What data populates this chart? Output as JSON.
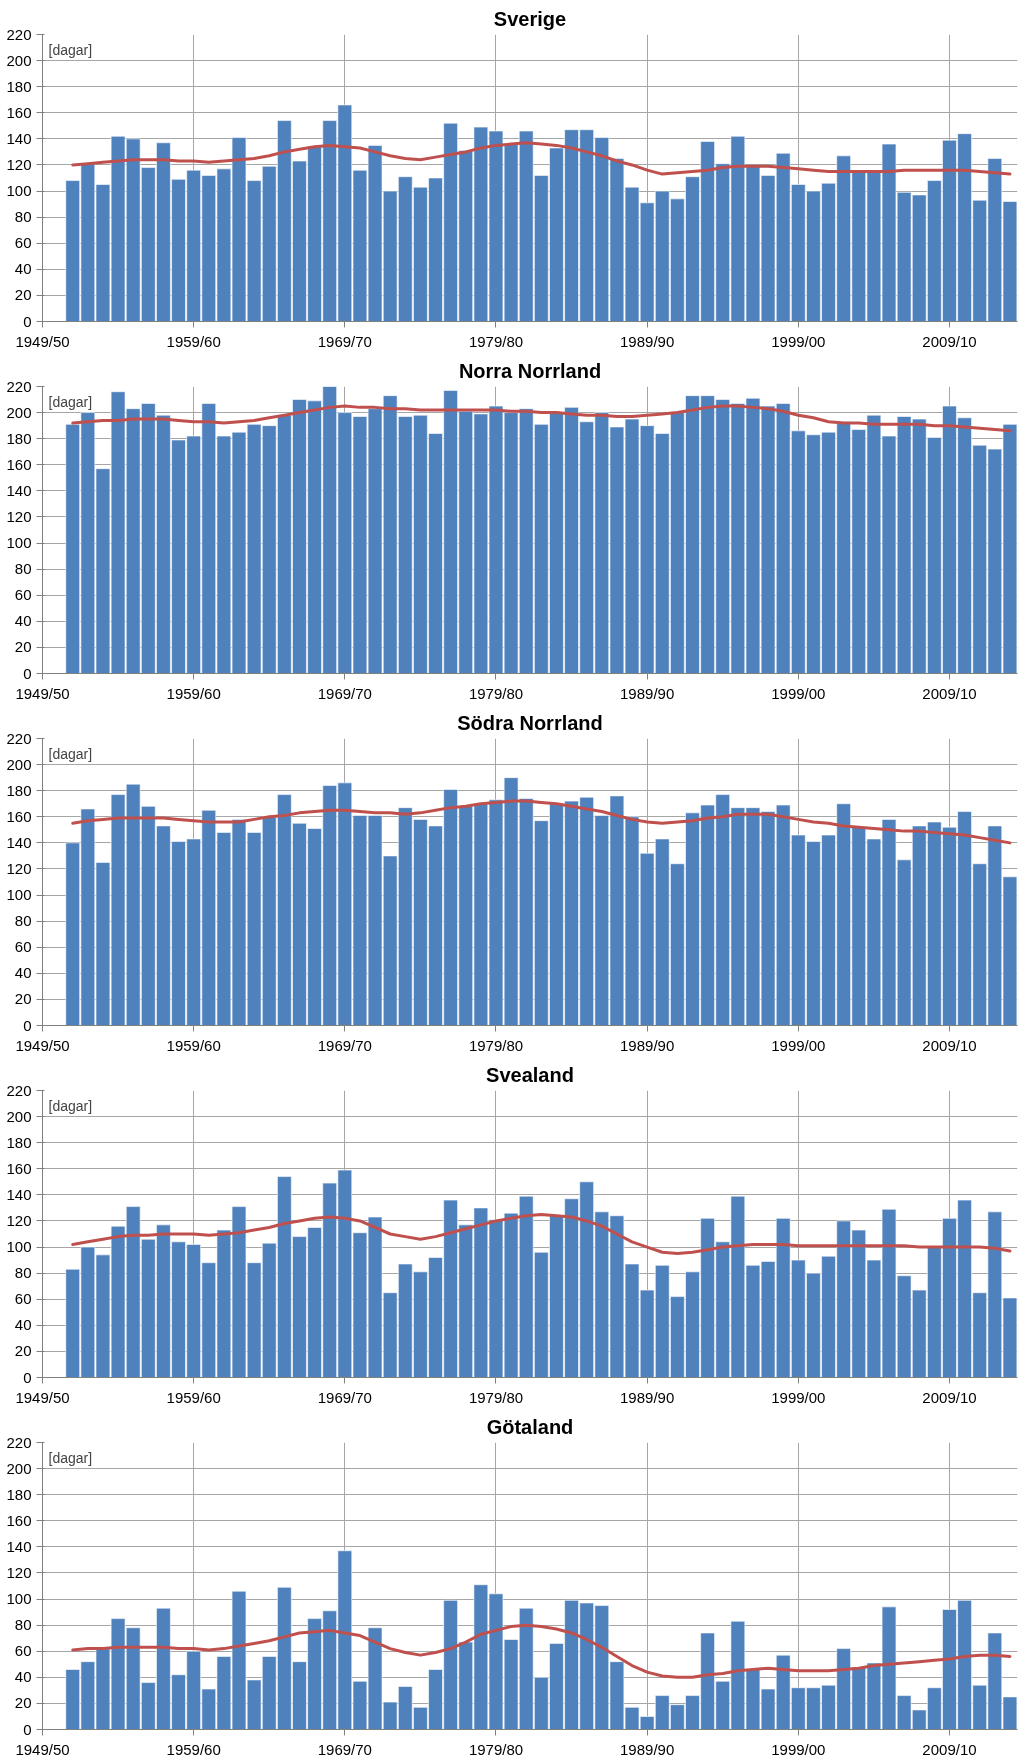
{
  "chart_data": [
    {
      "type": "bar",
      "title": "Sverige",
      "annotations": [
        "[dagar]"
      ],
      "ylim": [
        0,
        220
      ],
      "categories": [
        "1949/50",
        null,
        null,
        null,
        null,
        null,
        null,
        null,
        null,
        null,
        "1959/60",
        null,
        null,
        null,
        null,
        null,
        null,
        null,
        null,
        null,
        "1969/70",
        null,
        null,
        null,
        null,
        null,
        null,
        null,
        null,
        null,
        "1979/80",
        null,
        null,
        null,
        null,
        null,
        null,
        null,
        null,
        null,
        "1989/90",
        null,
        null,
        null,
        null,
        null,
        null,
        null,
        null,
        null,
        "1999/00",
        null,
        null,
        null,
        null,
        null,
        null,
        null,
        null,
        null,
        "2009/10",
        null,
        null,
        null,
        null
      ],
      "yticks": [
        0,
        20,
        40,
        60,
        80,
        100,
        120,
        140,
        160,
        180,
        200,
        220
      ],
      "grid": true,
      "series": [
        {
          "color": "#4f81bd",
          "values": [
            null,
            null,
            108,
            121,
            105,
            142,
            140,
            118,
            137,
            109,
            116,
            112,
            117,
            141,
            108,
            119,
            154,
            123,
            134,
            154,
            166,
            116,
            135,
            100,
            111,
            103,
            110,
            152,
            131,
            149,
            146,
            136,
            146,
            112,
            133,
            147,
            147,
            141,
            125,
            103,
            91,
            100,
            94,
            111,
            138,
            121,
            142,
            119,
            112,
            129,
            105,
            100,
            106,
            127,
            116,
            116,
            136,
            99,
            97,
            108,
            139,
            144,
            93,
            125,
            92
          ]
        },
        {
          "type": "line",
          "color": "#c0504d",
          "values": [
            null,
            null,
            120,
            121,
            122,
            123,
            124,
            124,
            124,
            123,
            123,
            122,
            123,
            124,
            125,
            127,
            130,
            132,
            134,
            135,
            134,
            133,
            130,
            127,
            125,
            124,
            126,
            128,
            130,
            133,
            135,
            136,
            137,
            136,
            135,
            133,
            130,
            127,
            123,
            120,
            116,
            113,
            114,
            115,
            116,
            118,
            119,
            119,
            119,
            118,
            117,
            116,
            115,
            115,
            115,
            115,
            115,
            116,
            116,
            116,
            116,
            116,
            115,
            114,
            113
          ]
        }
      ]
    },
    {
      "type": "bar",
      "title": "Norra Norrland",
      "annotations": [
        "[dagar]"
      ],
      "ylim": [
        0,
        220
      ],
      "categories": [
        "1949/50",
        null,
        null,
        null,
        null,
        null,
        null,
        null,
        null,
        null,
        "1959/60",
        null,
        null,
        null,
        null,
        null,
        null,
        null,
        null,
        null,
        "1969/70",
        null,
        null,
        null,
        null,
        null,
        null,
        null,
        null,
        null,
        "1979/80",
        null,
        null,
        null,
        null,
        null,
        null,
        null,
        null,
        null,
        "1989/90",
        null,
        null,
        null,
        null,
        null,
        null,
        null,
        null,
        null,
        "1999/00",
        null,
        null,
        null,
        null,
        null,
        null,
        null,
        null,
        null,
        "2009/10",
        null,
        null,
        null,
        null
      ],
      "yticks": [
        0,
        20,
        40,
        60,
        80,
        100,
        120,
        140,
        160,
        180,
        200,
        220
      ],
      "grid": true,
      "series": [
        {
          "color": "#4f81bd",
          "values": [
            null,
            null,
            191,
            200,
            157,
            216,
            203,
            207,
            198,
            179,
            182,
            207,
            182,
            185,
            191,
            190,
            198,
            210,
            209,
            220,
            200,
            197,
            203,
            213,
            197,
            198,
            184,
            217,
            201,
            199,
            205,
            200,
            203,
            191,
            200,
            204,
            193,
            200,
            189,
            195,
            190,
            184,
            200,
            213,
            213,
            210,
            207,
            211,
            205,
            207,
            186,
            183,
            185,
            193,
            187,
            198,
            182,
            197,
            195,
            181,
            205,
            196,
            175,
            172,
            191
          ]
        },
        {
          "type": "line",
          "color": "#c0504d",
          "values": [
            null,
            null,
            192,
            193,
            194,
            194,
            195,
            195,
            195,
            194,
            193,
            193,
            192,
            193,
            194,
            196,
            198,
            200,
            202,
            204,
            205,
            204,
            204,
            203,
            203,
            202,
            202,
            202,
            202,
            202,
            202,
            201,
            201,
            200,
            200,
            199,
            198,
            198,
            197,
            197,
            198,
            199,
            200,
            202,
            204,
            205,
            205,
            204,
            203,
            201,
            198,
            196,
            193,
            192,
            192,
            191,
            191,
            191,
            191,
            190,
            190,
            189,
            188,
            187,
            186
          ]
        }
      ]
    },
    {
      "type": "bar",
      "title": "Södra Norrland",
      "annotations": [
        "[dagar]"
      ],
      "ylim": [
        0,
        220
      ],
      "categories": [
        "1949/50",
        null,
        null,
        null,
        null,
        null,
        null,
        null,
        null,
        null,
        "1959/60",
        null,
        null,
        null,
        null,
        null,
        null,
        null,
        null,
        null,
        "1969/70",
        null,
        null,
        null,
        null,
        null,
        null,
        null,
        null,
        null,
        "1979/80",
        null,
        null,
        null,
        null,
        null,
        null,
        null,
        null,
        null,
        "1989/90",
        null,
        null,
        null,
        null,
        null,
        null,
        null,
        null,
        null,
        "1999/00",
        null,
        null,
        null,
        null,
        null,
        null,
        null,
        null,
        null,
        "2009/10",
        null,
        null,
        null,
        null
      ],
      "yticks": [
        0,
        20,
        40,
        60,
        80,
        100,
        120,
        140,
        160,
        180,
        200,
        220
      ],
      "grid": true,
      "series": [
        {
          "color": "#4f81bd",
          "values": [
            null,
            null,
            140,
            166,
            125,
            177,
            185,
            168,
            153,
            141,
            143,
            165,
            148,
            158,
            148,
            160,
            177,
            155,
            151,
            184,
            186,
            161,
            161,
            130,
            167,
            158,
            153,
            181,
            168,
            170,
            173,
            190,
            174,
            157,
            170,
            172,
            175,
            161,
            176,
            160,
            132,
            143,
            124,
            163,
            169,
            177,
            167,
            167,
            164,
            169,
            146,
            141,
            146,
            170,
            152,
            143,
            158,
            127,
            153,
            156,
            152,
            164,
            124,
            153,
            114
          ]
        },
        {
          "type": "line",
          "color": "#c0504d",
          "values": [
            null,
            null,
            155,
            157,
            158,
            159,
            159,
            159,
            159,
            158,
            157,
            156,
            156,
            156,
            158,
            160,
            161,
            163,
            164,
            165,
            165,
            164,
            163,
            163,
            162,
            163,
            165,
            167,
            168,
            170,
            171,
            172,
            172,
            171,
            170,
            168,
            166,
            164,
            161,
            158,
            156,
            155,
            156,
            157,
            159,
            160,
            162,
            162,
            162,
            160,
            158,
            156,
            155,
            153,
            152,
            151,
            150,
            149,
            149,
            148,
            147,
            146,
            144,
            142,
            140
          ]
        }
      ]
    },
    {
      "type": "bar",
      "title": "Svealand",
      "annotations": [
        "[dagar]"
      ],
      "ylim": [
        0,
        220
      ],
      "categories": [
        "1949/50",
        null,
        null,
        null,
        null,
        null,
        null,
        null,
        null,
        null,
        "1959/60",
        null,
        null,
        null,
        null,
        null,
        null,
        null,
        null,
        null,
        "1969/70",
        null,
        null,
        null,
        null,
        null,
        null,
        null,
        null,
        null,
        "1979/80",
        null,
        null,
        null,
        null,
        null,
        null,
        null,
        null,
        null,
        "1989/90",
        null,
        null,
        null,
        null,
        null,
        null,
        null,
        null,
        null,
        "1999/00",
        null,
        null,
        null,
        null,
        null,
        null,
        null,
        null,
        null,
        "2009/10",
        null,
        null,
        null,
        null
      ],
      "yticks": [
        0,
        20,
        40,
        60,
        80,
        100,
        120,
        140,
        160,
        180,
        200,
        220
      ],
      "grid": true,
      "series": [
        {
          "color": "#4f81bd",
          "values": [
            null,
            null,
            83,
            100,
            94,
            116,
            131,
            106,
            117,
            104,
            102,
            88,
            113,
            131,
            88,
            103,
            154,
            108,
            115,
            149,
            159,
            111,
            123,
            65,
            87,
            81,
            92,
            136,
            117,
            130,
            121,
            126,
            139,
            96,
            124,
            137,
            150,
            127,
            124,
            87,
            67,
            86,
            62,
            81,
            122,
            104,
            139,
            86,
            89,
            122,
            90,
            80,
            93,
            120,
            113,
            90,
            129,
            78,
            67,
            100,
            122,
            136,
            65,
            127,
            61
          ]
        },
        {
          "type": "line",
          "color": "#c0504d",
          "values": [
            null,
            null,
            102,
            104,
            106,
            108,
            109,
            109,
            110,
            110,
            110,
            109,
            110,
            111,
            113,
            115,
            118,
            120,
            122,
            123,
            122,
            120,
            115,
            110,
            108,
            106,
            108,
            111,
            114,
            117,
            120,
            122,
            124,
            125,
            124,
            123,
            120,
            116,
            110,
            104,
            100,
            96,
            95,
            96,
            98,
            100,
            101,
            102,
            102,
            102,
            101,
            101,
            101,
            101,
            101,
            101,
            101,
            101,
            100,
            100,
            100,
            100,
            100,
            99,
            97
          ]
        }
      ]
    },
    {
      "type": "bar",
      "title": "Götaland",
      "annotations": [
        "[dagar]"
      ],
      "ylim": [
        0,
        220
      ],
      "categories": [
        "1949/50",
        null,
        null,
        null,
        null,
        null,
        null,
        null,
        null,
        null,
        "1959/60",
        null,
        null,
        null,
        null,
        null,
        null,
        null,
        null,
        null,
        "1969/70",
        null,
        null,
        null,
        null,
        null,
        null,
        null,
        null,
        null,
        "1979/80",
        null,
        null,
        null,
        null,
        null,
        null,
        null,
        null,
        null,
        "1989/90",
        null,
        null,
        null,
        null,
        null,
        null,
        null,
        null,
        null,
        "1999/00",
        null,
        null,
        null,
        null,
        null,
        null,
        null,
        null,
        null,
        "2009/10",
        null,
        null,
        null,
        null
      ],
      "yticks": [
        0,
        20,
        40,
        60,
        80,
        100,
        120,
        140,
        160,
        180,
        200,
        220
      ],
      "grid": true,
      "series": [
        {
          "color": "#4f81bd",
          "values": [
            null,
            null,
            46,
            52,
            62,
            85,
            78,
            36,
            93,
            42,
            60,
            31,
            56,
            106,
            38,
            56,
            109,
            52,
            85,
            91,
            137,
            37,
            78,
            21,
            33,
            17,
            46,
            99,
            67,
            111,
            104,
            69,
            93,
            40,
            66,
            99,
            97,
            95,
            52,
            17,
            10,
            26,
            19,
            26,
            74,
            37,
            83,
            46,
            31,
            57,
            32,
            32,
            34,
            62,
            48,
            51,
            94,
            26,
            15,
            32,
            92,
            99,
            34,
            74,
            25
          ]
        },
        {
          "type": "line",
          "color": "#c0504d",
          "values": [
            null,
            null,
            61,
            62,
            62,
            63,
            63,
            63,
            63,
            62,
            62,
            61,
            62,
            64,
            66,
            68,
            71,
            74,
            75,
            76,
            74,
            72,
            67,
            62,
            59,
            57,
            59,
            62,
            67,
            73,
            76,
            79,
            80,
            79,
            77,
            74,
            69,
            63,
            56,
            49,
            44,
            41,
            40,
            40,
            42,
            43,
            45,
            46,
            47,
            46,
            45,
            45,
            45,
            46,
            47,
            49,
            50,
            51,
            52,
            53,
            54,
            56,
            57,
            57,
            56
          ]
        }
      ]
    }
  ]
}
